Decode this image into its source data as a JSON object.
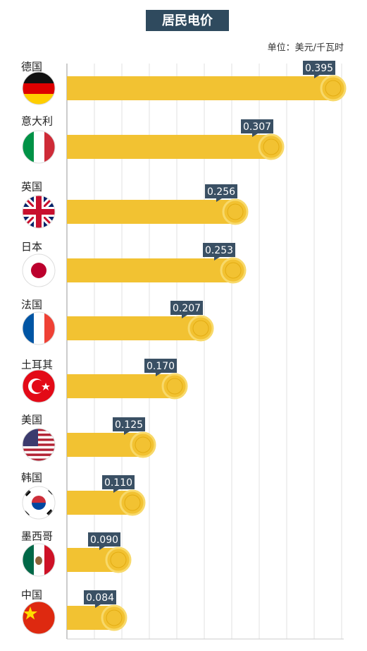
{
  "chart_data": {
    "type": "bar",
    "orientation": "horizontal",
    "title": "居民电价",
    "unit": "单位：美元/千瓦时",
    "categories": [
      "德国",
      "意大利",
      "英国",
      "日本",
      "法国",
      "土耳其",
      "美国",
      "韩国",
      "墨西哥",
      "中国"
    ],
    "values": [
      0.395,
      0.307,
      0.256,
      0.253,
      0.207,
      0.17,
      0.125,
      0.11,
      0.09,
      0.084
    ],
    "value_labels": [
      "0.395",
      "0.307",
      "0.256",
      "0.253",
      "0.207",
      "0.170",
      "0.125",
      "0.110",
      "0.090",
      "0.084"
    ],
    "color": "#f2c232",
    "xlim": [
      0,
      0.4
    ]
  }
}
